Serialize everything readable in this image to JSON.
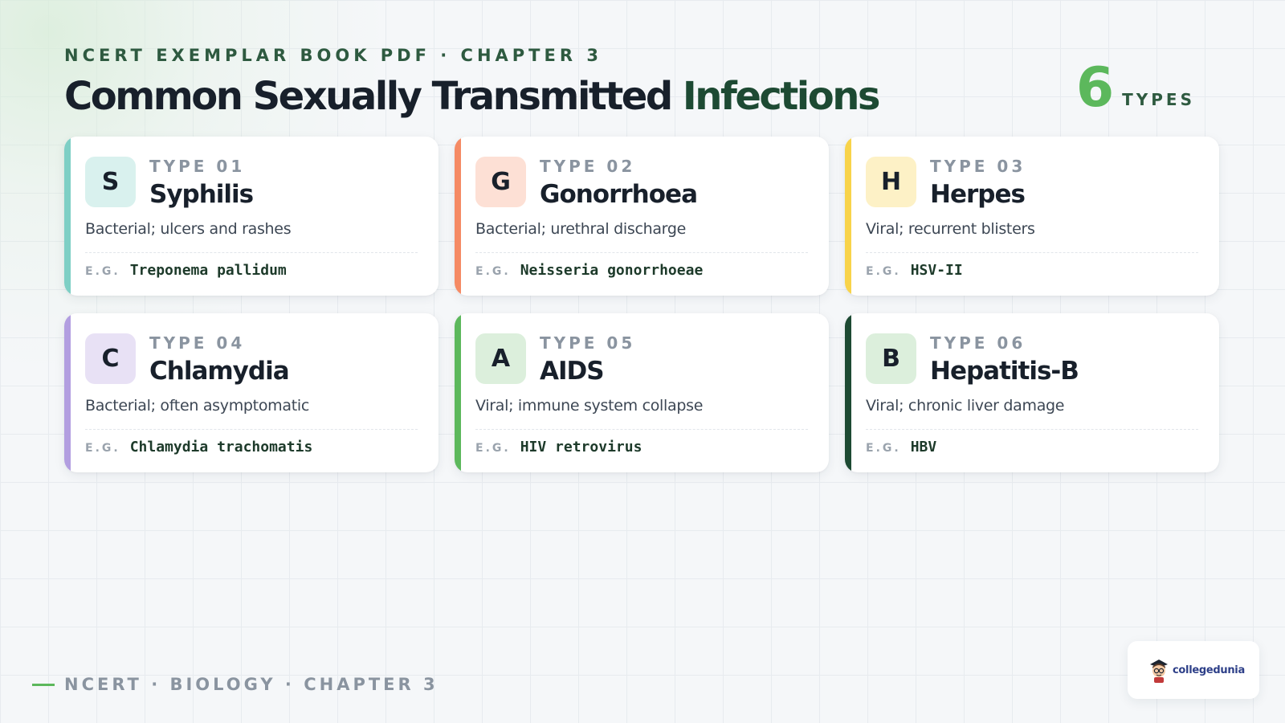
{
  "header": {
    "kicker": "NCERT EXEMPLAR BOOK PDF · CHAPTER 3",
    "title_main": "Common Sexually Transmitted ",
    "title_accent": "Infections",
    "count_number": "6",
    "count_label": "TYPES"
  },
  "cards": [
    {
      "type_label": "TYPE 01",
      "letter": "S",
      "name": "Syphilis",
      "description": "Bacterial; ulcers and rashes",
      "eg_label": "E.G.",
      "example": "Treponema pallidum",
      "accent_color": "#7ecfc5",
      "letter_bg": "#d9f1ee"
    },
    {
      "type_label": "TYPE 02",
      "letter": "G",
      "name": "Gonorrhoea",
      "description": "Bacterial; urethral discharge",
      "eg_label": "E.G.",
      "example": "Neisseria gonorrhoeae",
      "accent_color": "#f58a64",
      "letter_bg": "#fde0d5"
    },
    {
      "type_label": "TYPE 03",
      "letter": "H",
      "name": "Herpes",
      "description": "Viral; recurrent blisters",
      "eg_label": "E.G.",
      "example": "HSV-II",
      "accent_color": "#f8d34a",
      "letter_bg": "#fdf1c6"
    },
    {
      "type_label": "TYPE 04",
      "letter": "C",
      "name": "Chlamydia",
      "description": "Bacterial; often asymptomatic",
      "eg_label": "E.G.",
      "example": "Chlamydia trachomatis",
      "accent_color": "#b29ee0",
      "letter_bg": "#e8e1f5"
    },
    {
      "type_label": "TYPE 05",
      "letter": "A",
      "name": "AIDS",
      "description": "Viral; immune system collapse",
      "eg_label": "E.G.",
      "example": "HIV retrovirus",
      "accent_color": "#5cb85c",
      "letter_bg": "#dcefdc"
    },
    {
      "type_label": "TYPE 06",
      "letter": "B",
      "name": "Hepatitis-B",
      "description": "Viral; chronic liver damage",
      "eg_label": "E.G.",
      "example": "HBV",
      "accent_color": "#1d4a33",
      "letter_bg": "#dcefdc"
    }
  ],
  "footer": {
    "text": "NCERT · BIOLOGY · CHAPTER 3",
    "accent_color": "#5cb85c"
  },
  "logo": {
    "brand": "collegedunia",
    "icon": "mascot-icon"
  }
}
